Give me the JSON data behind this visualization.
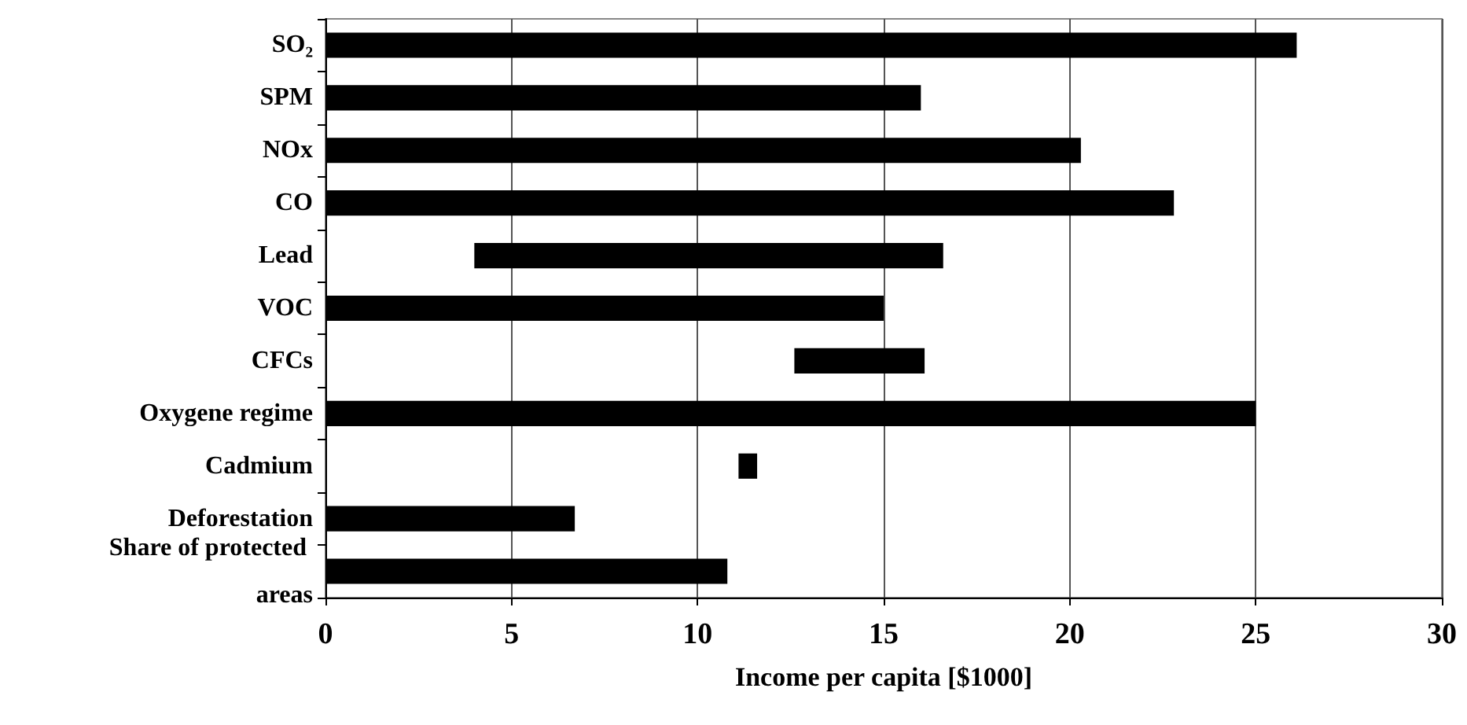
{
  "chart_data": {
    "type": "bar",
    "orientation": "horizontal",
    "categories": [
      "SO₂",
      "SPM",
      "NOx",
      "CO",
      "Lead",
      "VOC",
      "CFCs",
      "Oxygene regime",
      "Cadmium",
      "Deforestation",
      "Share of protected areas"
    ],
    "base": [
      0,
      0,
      0,
      0,
      4.0,
      0,
      12.6,
      0,
      11.1,
      0,
      0
    ],
    "values": [
      26.1,
      16.0,
      20.3,
      22.8,
      12.6,
      15.0,
      3.5,
      25.0,
      0.5,
      6.7,
      10.8
    ],
    "color": "#000000",
    "xlabel": "Income per capita [$1000]",
    "xlim": [
      0,
      30
    ],
    "xticks": [
      0,
      5,
      10,
      15,
      20,
      25,
      30
    ],
    "grid": "x"
  }
}
